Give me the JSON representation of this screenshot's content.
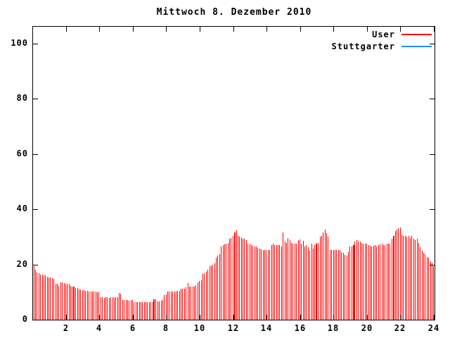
{
  "title": "Mittwoch 8. Dezember 2010",
  "legend": {
    "items": [
      {
        "label": "User",
        "color": "#ff0000"
      },
      {
        "label": "Stuttgarter",
        "color": "#1e90ff"
      }
    ]
  },
  "chart_data": {
    "type": "bar",
    "title": "Mittwoch 8. Dezember 2010",
    "xlabel": "",
    "ylabel": "",
    "x_unit": "hour of day",
    "sample_interval_minutes": 6,
    "xlim": [
      0,
      24
    ],
    "ylim": [
      0,
      106
    ],
    "xticks": [
      2,
      4,
      6,
      8,
      10,
      12,
      14,
      16,
      18,
      20,
      22,
      24
    ],
    "yticks": [
      0,
      20,
      40,
      60,
      80,
      100
    ],
    "grid": false,
    "legend_position": "top-right-inside",
    "bar_style": "impulses",
    "series": [
      {
        "name": "User",
        "color": "#ff0000",
        "values": [
          19.3,
          18.0,
          17.1,
          16.9,
          16.4,
          16.3,
          16.0,
          16.0,
          15.6,
          15.3,
          15.2,
          15.0,
          14.7,
          13.0,
          12.9,
          12.2,
          13.5,
          13.5,
          13.3,
          13.1,
          13.0,
          12.9,
          12.2,
          12.0,
          12.0,
          11.5,
          11.5,
          10.9,
          10.9,
          10.8,
          10.8,
          10.5,
          10.5,
          10.3,
          10.3,
          10.1,
          10.1,
          10.1,
          9.9,
          9.9,
          8.2,
          8.1,
          8.0,
          8.1,
          8.2,
          8.0,
          8.1,
          8.1,
          8.0,
          8.1,
          8.1,
          9.7,
          9.5,
          7.1,
          7.1,
          7.2,
          7.1,
          7.0,
          7.1,
          7.1,
          6.4,
          6.3,
          6.3,
          6.4,
          6.3,
          6.3,
          6.4,
          6.3,
          6.3,
          6.4,
          6.3,
          6.3,
          7.3,
          7.3,
          6.7,
          6.7,
          6.8,
          7.1,
          8.8,
          9.2,
          10.1,
          10.1,
          10.1,
          10.1,
          10.2,
          10.1,
          10.5,
          10.5,
          11.1,
          11.1,
          11.3,
          11.8,
          13.2,
          12.0,
          12.0,
          12.0,
          12.1,
          12.6,
          13.5,
          13.9,
          14.3,
          16.6,
          16.9,
          17.3,
          18.1,
          19.4,
          19.7,
          20.0,
          20.5,
          22.4,
          23.2,
          23.7,
          26.6,
          27.0,
          27.2,
          27.5,
          27.9,
          29.2,
          29.6,
          30.4,
          31.5,
          32.3,
          30.4,
          30.0,
          29.8,
          29.3,
          29.2,
          28.7,
          27.6,
          27.5,
          27.0,
          26.8,
          26.6,
          26.4,
          26.0,
          25.8,
          25.6,
          25.3,
          25.3,
          25.3,
          25.3,
          25.3,
          27.0,
          27.6,
          27.0,
          27.0,
          26.9,
          26.9,
          26.6,
          31.5,
          28.3,
          27.9,
          29.6,
          28.7,
          27.9,
          27.6,
          27.5,
          27.6,
          28.7,
          29.0,
          27.5,
          28.5,
          26.6,
          27.0,
          26.2,
          24.9,
          27.6,
          25.8,
          27.0,
          27.5,
          27.9,
          30.0,
          30.4,
          31.7,
          32.7,
          31.3,
          30.0,
          25.3,
          25.3,
          25.2,
          25.3,
          25.2,
          25.3,
          25.1,
          24.5,
          24.1,
          23.4,
          23.2,
          24.5,
          26.6,
          26.6,
          27.0,
          28.3,
          28.7,
          28.3,
          28.3,
          27.9,
          27.6,
          27.5,
          27.5,
          27.0,
          26.8,
          26.6,
          26.8,
          27.0,
          26.6,
          27.0,
          27.3,
          27.5,
          27.0,
          27.0,
          27.5,
          27.5,
          27.4,
          29.2,
          30.4,
          32.1,
          32.5,
          33.2,
          33.5,
          30.9,
          30.4,
          30.2,
          30.0,
          30.4,
          29.6,
          30.4,
          29.2,
          28.7,
          29.2,
          27.9,
          26.2,
          24.9,
          24.1,
          23.7,
          22.8,
          22.4,
          21.1,
          20.7,
          19.3
        ],
        "wide_bar_indices": [
          24,
          72,
          120,
          169,
          191,
          215
        ]
      },
      {
        "name": "Stuttgarter",
        "color": "#1e90ff",
        "values": []
      }
    ]
  }
}
